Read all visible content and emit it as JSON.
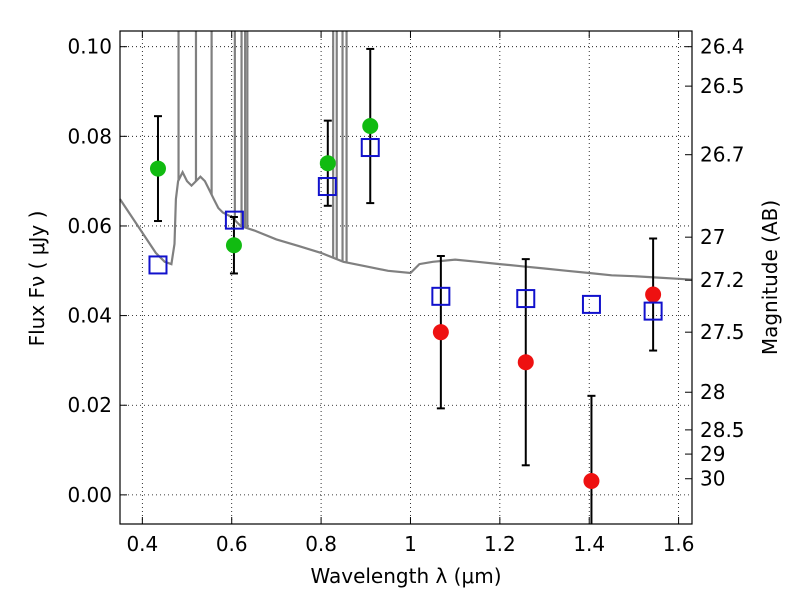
{
  "chart_data": {
    "type": "scatter",
    "xlabel": "Wavelength  λ (μm)",
    "ylabel": "Flux  Fν  ( μJy )",
    "ylabel_right": "Magnitude (AB)",
    "xlim": [
      0.35,
      1.63
    ],
    "ylim": [
      -0.0065,
      0.1035
    ],
    "grid": true,
    "x_ticks": [
      {
        "value": 0.4,
        "label": "0.4"
      },
      {
        "value": 0.6,
        "label": "0.6"
      },
      {
        "value": 0.8,
        "label": "0.8"
      },
      {
        "value": 1.0,
        "label": "1"
      },
      {
        "value": 1.2,
        "label": "1.2"
      },
      {
        "value": 1.4,
        "label": "1.4"
      },
      {
        "value": 1.6,
        "label": "1.6"
      }
    ],
    "y_ticks": [
      {
        "value": 0.0,
        "label": "0.00"
      },
      {
        "value": 0.02,
        "label": "0.02"
      },
      {
        "value": 0.04,
        "label": "0.04"
      },
      {
        "value": 0.06,
        "label": "0.06"
      },
      {
        "value": 0.08,
        "label": "0.08"
      },
      {
        "value": 0.1,
        "label": "0.10"
      }
    ],
    "right_ticks": [
      {
        "flux": 0.1,
        "label": "26.4"
      },
      {
        "flux": 0.0912,
        "label": "26.5"
      },
      {
        "flux": 0.0759,
        "label": "26.7"
      },
      {
        "flux": 0.0575,
        "label": "27"
      },
      {
        "flux": 0.0479,
        "label": "27.2"
      },
      {
        "flux": 0.0363,
        "label": "27.5"
      },
      {
        "flux": 0.0229,
        "label": "28"
      },
      {
        "flux": 0.0145,
        "label": "28.5"
      },
      {
        "flux": 0.0091,
        "label": "29"
      },
      {
        "flux": 0.0036,
        "label": "30"
      }
    ],
    "series": [
      {
        "marker": "circle",
        "color": "#11bb11",
        "x": [
          0.435,
          0.605,
          0.815,
          0.91
        ],
        "y": [
          0.0728,
          0.0557,
          0.074,
          0.0823
        ],
        "err": [
          0.0117,
          0.0063,
          0.0095,
          0.0172
        ]
      },
      {
        "marker": "circle",
        "color": "#ee1111",
        "x": [
          1.068,
          1.258,
          1.405,
          1.543
        ],
        "y": [
          0.0363,
          0.0296,
          0.0031,
          0.0447
        ],
        "err": [
          0.017,
          0.023,
          0.019,
          0.0125
        ]
      },
      {
        "marker": "open-square",
        "color": "#1111cc",
        "x": [
          0.435,
          0.606,
          0.814,
          0.91,
          1.068,
          1.258,
          1.405,
          1.543
        ],
        "y": [
          0.0513,
          0.0613,
          0.0688,
          0.0775,
          0.0443,
          0.0438,
          0.0425,
          0.041
        ]
      }
    ],
    "model_spectrum": {
      "color": "#808080",
      "x": [
        0.35,
        0.37,
        0.39,
        0.41,
        0.43,
        0.45,
        0.465,
        0.472,
        0.475,
        0.48,
        0.49,
        0.5,
        0.51,
        0.52,
        0.53,
        0.54,
        0.55,
        0.56,
        0.57,
        0.58,
        0.6,
        0.62,
        0.65,
        0.7,
        0.75,
        0.8,
        0.85,
        0.9,
        0.95,
        1.0,
        1.02,
        1.05,
        1.1,
        1.15,
        1.2,
        1.25,
        1.3,
        1.35,
        1.4,
        1.45,
        1.5,
        1.55,
        1.6,
        1.63
      ],
      "y": [
        0.066,
        0.063,
        0.06,
        0.057,
        0.054,
        0.052,
        0.0515,
        0.056,
        0.066,
        0.07,
        0.072,
        0.07,
        0.069,
        0.07,
        0.071,
        0.07,
        0.068,
        0.066,
        0.064,
        0.063,
        0.062,
        0.06,
        0.059,
        0.057,
        0.0555,
        0.054,
        0.052,
        0.051,
        0.05,
        0.0495,
        0.0515,
        0.052,
        0.0525,
        0.052,
        0.0515,
        0.051,
        0.0505,
        0.05,
        0.0495,
        0.049,
        0.0488,
        0.0485,
        0.0482,
        0.048
      ]
    },
    "emission_lines": [
      0.481,
      0.52,
      0.555,
      0.607,
      0.622,
      0.63,
      0.635,
      0.827,
      0.835,
      0.848,
      0.857
    ]
  }
}
